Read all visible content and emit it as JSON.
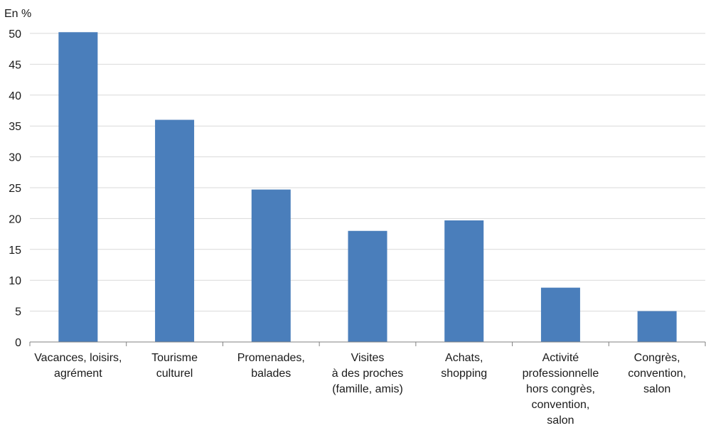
{
  "chart_data": {
    "type": "bar",
    "unit_label": "En %",
    "title": "",
    "xlabel": "",
    "ylabel": "",
    "ylim": [
      0,
      50
    ],
    "yticks": [
      0,
      5,
      10,
      15,
      20,
      25,
      30,
      35,
      40,
      45,
      50
    ],
    "grid": true,
    "legend": "none",
    "bar_color": "#4a7ebb",
    "categories": [
      [
        "Vacances, loisirs,",
        "agrément"
      ],
      [
        "Tourisme",
        "culturel"
      ],
      [
        "Promenades,",
        "balades"
      ],
      [
        "Visites",
        "à des proches",
        "(famille, amis)"
      ],
      [
        "Achats,",
        "shopping"
      ],
      [
        "Activité",
        "professionnelle",
        "hors congrès,",
        "convention,",
        "salon"
      ],
      [
        "Congrès,",
        "convention,",
        "salon"
      ]
    ],
    "values": [
      50.2,
      36.0,
      24.7,
      18.0,
      19.7,
      8.8,
      5.0
    ]
  }
}
